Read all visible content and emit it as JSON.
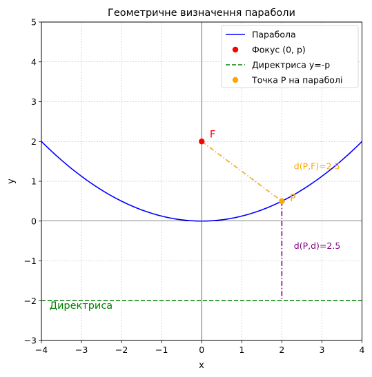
{
  "chart_data": {
    "type": "line",
    "title": "Геометричне визначення параболи",
    "xlabel": "x",
    "ylabel": "y",
    "xlim": [
      -4,
      4
    ],
    "ylim": [
      -3,
      5
    ],
    "xticks": [
      -4,
      -3,
      -2,
      -1,
      0,
      1,
      2,
      3,
      4
    ],
    "yticks": [
      -3,
      -2,
      -1,
      0,
      1,
      2,
      3,
      4,
      5
    ],
    "xtick_labels": [
      "−4",
      "−3",
      "−2",
      "−1",
      "0",
      "1",
      "2",
      "3",
      "4"
    ],
    "ytick_labels": [
      "−3",
      "−2",
      "−1",
      "0",
      "1",
      "2",
      "3",
      "4",
      "5"
    ],
    "grid": true,
    "legend_position": "top-right",
    "series": [
      {
        "name": "Парабола",
        "kind": "line",
        "color": "#0000ff",
        "equation": "y = x^2 / 8",
        "x_range": [
          -4,
          4
        ]
      },
      {
        "name": "Фокус (0, p)",
        "kind": "point",
        "color": "#ff0000",
        "points": [
          [
            0,
            2
          ]
        ]
      },
      {
        "name": "Директриса y=-p",
        "kind": "hline",
        "color": "#008000",
        "y": -2,
        "style": "dashed"
      },
      {
        "name": "Точка P на параболі",
        "kind": "point",
        "color": "#ffa500",
        "points": [
          [
            2,
            0.5
          ]
        ]
      }
    ],
    "segments": [
      {
        "from": [
          0,
          2
        ],
        "to": [
          2,
          0.5
        ],
        "color": "#ffa500",
        "style": "dashdot"
      },
      {
        "from": [
          2,
          0.5
        ],
        "to": [
          2,
          -2
        ],
        "color": "#800080",
        "style": "dashdot"
      }
    ],
    "annotations": [
      {
        "text": "F",
        "x": 0.2,
        "y": 2.1,
        "color": "#ff0000"
      },
      {
        "text": "P",
        "x": 2.2,
        "y": 0.5,
        "color": "#ffa500"
      },
      {
        "text": "d(P,F)=2.5",
        "x": 2.3,
        "y": 1.3,
        "color": "#ffa500"
      },
      {
        "text": "d(P,d)=2.5",
        "x": 2.3,
        "y": -0.7,
        "color": "#800080"
      },
      {
        "text": "Директриса",
        "x": -3.8,
        "y": -2.2,
        "color": "#008000"
      }
    ]
  }
}
